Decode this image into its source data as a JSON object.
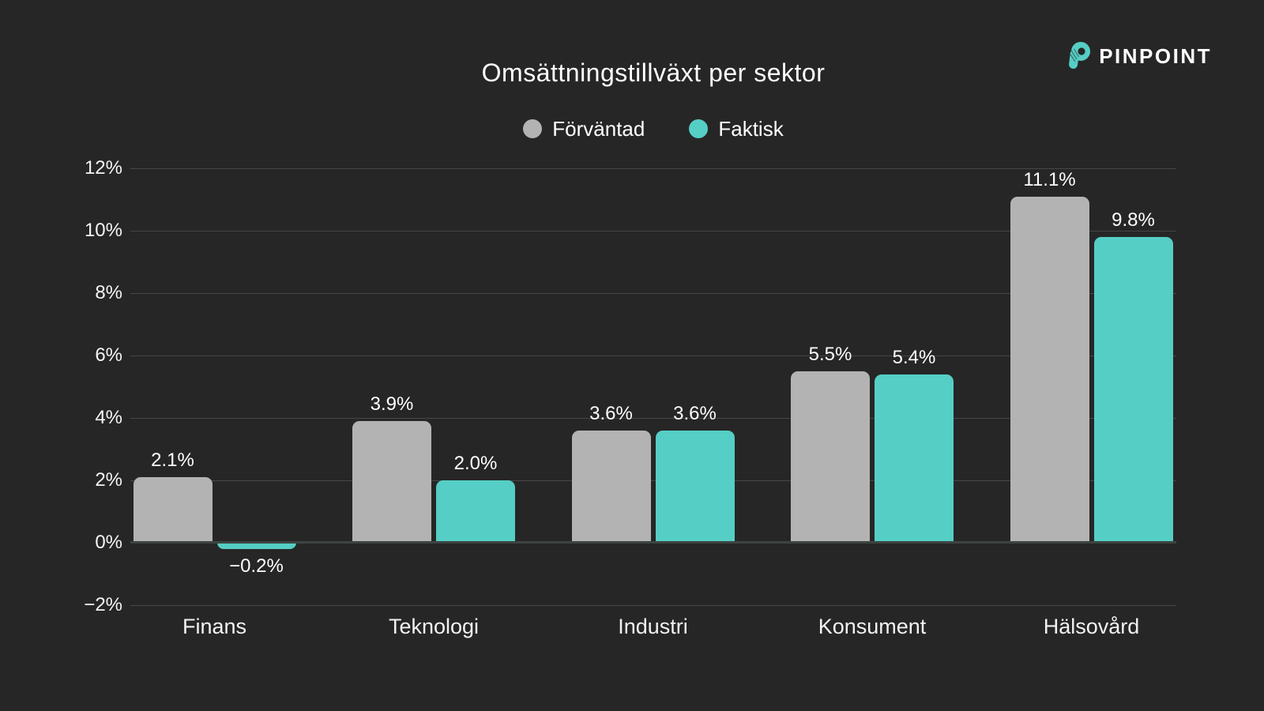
{
  "brand": {
    "name": "PINPOINT",
    "logo_color": "#55cec5"
  },
  "chart_data": {
    "type": "bar",
    "title": "Omsättningstillväxt per sektor",
    "categories": [
      "Finans",
      "Teknologi",
      "Industri",
      "Konsument",
      "Hälsovård"
    ],
    "series": [
      {
        "name": "Förväntad",
        "color": "#b3b3b3",
        "values": [
          2.1,
          3.9,
          3.6,
          5.5,
          11.1
        ]
      },
      {
        "name": "Faktisk",
        "color": "#55cec5",
        "values": [
          -0.2,
          2.0,
          3.6,
          5.4,
          9.8
        ]
      }
    ],
    "value_labels": [
      [
        "2.1%",
        "3.9%",
        "3.6%",
        "5.5%",
        "11.1%"
      ],
      [
        "−0.2%",
        "2.0%",
        "3.6%",
        "5.4%",
        "9.8%"
      ]
    ],
    "y_ticks": [
      "12%",
      "10%",
      "8%",
      "6%",
      "4%",
      "2%",
      "0%",
      "−2%"
    ],
    "y_tick_values": [
      12,
      10,
      8,
      6,
      4,
      2,
      0,
      -2
    ],
    "ylim": [
      -2,
      12
    ],
    "unit": "%",
    "grid": true,
    "legend_position": "top"
  },
  "colors": {
    "background": "#262626",
    "text": "#ffffff",
    "gridline": "#474747",
    "zero_line": "#3d4442"
  }
}
